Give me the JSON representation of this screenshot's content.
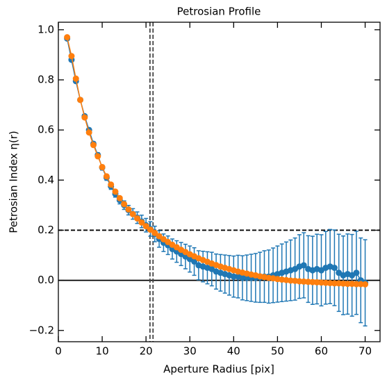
{
  "chart_data": {
    "type": "errorbar-line",
    "title": "Petrosian Profile",
    "xlabel": "Aperture Radius [pix]",
    "ylabel": "Petrosian Index η(r)",
    "x": [
      2,
      3,
      4,
      5,
      6,
      7,
      8,
      9,
      10,
      11,
      12,
      13,
      14,
      15,
      16,
      17,
      18,
      19,
      20,
      21,
      22,
      23,
      24,
      25,
      26,
      27,
      28,
      29,
      30,
      31,
      32,
      33,
      34,
      35,
      36,
      37,
      38,
      39,
      40,
      41,
      42,
      43,
      44,
      45,
      46,
      47,
      48,
      49,
      50,
      51,
      52,
      53,
      54,
      55,
      56,
      57,
      58,
      59,
      60,
      61,
      62,
      63,
      64,
      65,
      66,
      67,
      68,
      69,
      70
    ],
    "series": [
      {
        "color": "#1f77b4",
        "values": [
          0.965,
          0.88,
          0.795,
          0.72,
          0.655,
          0.6,
          0.545,
          0.5,
          0.45,
          0.41,
          0.375,
          0.345,
          0.32,
          0.3,
          0.28,
          0.265,
          0.25,
          0.235,
          0.22,
          0.205,
          0.185,
          0.165,
          0.15,
          0.14,
          0.125,
          0.115,
          0.105,
          0.095,
          0.085,
          0.075,
          0.06,
          0.055,
          0.05,
          0.045,
          0.035,
          0.03,
          0.025,
          0.02,
          0.015,
          0.015,
          0.01,
          0.01,
          0.01,
          0.01,
          0.012,
          0.015,
          0.015,
          0.02,
          0.025,
          0.03,
          0.035,
          0.04,
          0.045,
          0.055,
          0.06,
          0.045,
          0.04,
          0.045,
          0.04,
          0.05,
          0.055,
          0.05,
          0.03,
          0.02,
          0.025,
          0.02,
          0.03,
          0.0,
          -0.01
        ],
        "errors": [
          0.005,
          0.005,
          0.006,
          0.006,
          0.007,
          0.008,
          0.008,
          0.009,
          0.01,
          0.011,
          0.012,
          0.013,
          0.015,
          0.017,
          0.019,
          0.021,
          0.023,
          0.025,
          0.027,
          0.029,
          0.031,
          0.033,
          0.035,
          0.037,
          0.04,
          0.043,
          0.046,
          0.049,
          0.052,
          0.055,
          0.058,
          0.061,
          0.064,
          0.067,
          0.07,
          0.073,
          0.076,
          0.079,
          0.082,
          0.085,
          0.088,
          0.091,
          0.094,
          0.097,
          0.1,
          0.103,
          0.106,
          0.109,
          0.112,
          0.115,
          0.118,
          0.121,
          0.124,
          0.127,
          0.13,
          0.133,
          0.136,
          0.139,
          0.142,
          0.145,
          0.148,
          0.151,
          0.154,
          0.157,
          0.16,
          0.163,
          0.166,
          0.169,
          0.172
        ]
      },
      {
        "color": "#ff7f0e",
        "values": [
          0.97,
          0.895,
          0.805,
          0.72,
          0.65,
          0.59,
          0.54,
          0.495,
          0.452,
          0.415,
          0.382,
          0.354,
          0.328,
          0.304,
          0.283,
          0.264,
          0.247,
          0.231,
          0.216,
          0.202,
          0.189,
          0.176,
          0.164,
          0.153,
          0.142,
          0.132,
          0.122,
          0.113,
          0.104,
          0.096,
          0.088,
          0.081,
          0.074,
          0.067,
          0.061,
          0.055,
          0.05,
          0.045,
          0.04,
          0.035,
          0.031,
          0.027,
          0.023,
          0.02,
          0.016,
          0.013,
          0.01,
          0.008,
          0.005,
          0.003,
          0.001,
          -0.001,
          -0.002,
          -0.004,
          -0.005,
          -0.006,
          -0.007,
          -0.008,
          -0.009,
          -0.01,
          -0.011,
          -0.012,
          -0.012,
          -0.013,
          -0.014,
          -0.014,
          -0.015,
          -0.015,
          -0.016
        ]
      }
    ],
    "vlines": [
      20.9,
      21.6
    ],
    "hline_dashed": 0.2,
    "hline_solid": 0,
    "xlim": [
      0,
      73.4
    ],
    "ylim": [
      -0.245,
      1.03
    ],
    "xticks": [
      0,
      10,
      20,
      30,
      40,
      50,
      60,
      70
    ],
    "yticks": [
      {
        "value": -0.2,
        "label": "−0.2"
      },
      {
        "value": 0,
        "label": "0.0"
      },
      0.2,
      0.4,
      0.6,
      0.8,
      {
        "value": 1,
        "label": "1.0"
      }
    ]
  }
}
